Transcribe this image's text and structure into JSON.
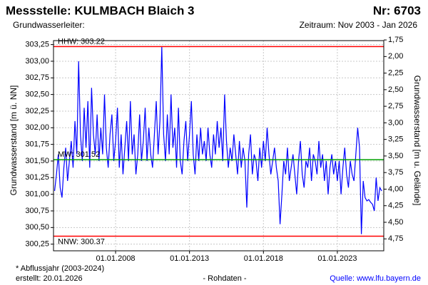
{
  "chart_data": {
    "type": "line",
    "title": "Messstelle: KULMBACH Blaich 3",
    "number": "Nr: 6703",
    "aquifer": "Grundwasserleiter:",
    "period": "Zeitraum: Nov 2003 - Jan 2026",
    "ylabel": "Grundwasserstand [m ü. NN]",
    "y2label": "Grundwasserstand [m u. Gelände]",
    "footnote": "* Abflussjahr (2003-2024)",
    "created": "erstellt:  20.01.2026",
    "rawdata": "- Rohdaten -",
    "source": "Quelle: www.lfu.bayern.de",
    "grid": true,
    "y2_inverted": true,
    "xlim": [
      2003.8,
      2026.14
    ],
    "xticks": [
      {
        "value": 2008,
        "label": "01.01.2008"
      },
      {
        "value": 2013,
        "label": "01.01.2013"
      },
      {
        "value": 2018,
        "label": "01.01.2018"
      },
      {
        "value": 2023,
        "label": "01.01.2023"
      }
    ],
    "ylim": [
      300.15,
      303.31
    ],
    "yticks": [
      {
        "value": 300.25,
        "label": "300,25"
      },
      {
        "value": 300.5,
        "label": "300,50"
      },
      {
        "value": 300.75,
        "label": "300,75"
      },
      {
        "value": 301,
        "label": "301,00"
      },
      {
        "value": 301.25,
        "label": "301,25"
      },
      {
        "value": 301.5,
        "label": "301,50"
      },
      {
        "value": 301.75,
        "label": "301,75"
      },
      {
        "value": 302,
        "label": "302,00"
      },
      {
        "value": 302.25,
        "label": "302,25"
      },
      {
        "value": 302.5,
        "label": "302,50"
      },
      {
        "value": 302.75,
        "label": "302,75"
      },
      {
        "value": 303,
        "label": "303,00"
      },
      {
        "value": 303.25,
        "label": "303,25"
      }
    ],
    "y2lim": [
      1.76,
      4.93
    ],
    "y2ticks": [
      {
        "value": 1.75,
        "label": "1,75"
      },
      {
        "value": 2,
        "label": "2,00"
      },
      {
        "value": 2.25,
        "label": "2,25"
      },
      {
        "value": 2.5,
        "label": "2,50"
      },
      {
        "value": 2.75,
        "label": "2,75"
      },
      {
        "value": 3,
        "label": "3,00"
      },
      {
        "value": 3.25,
        "label": "3,25"
      },
      {
        "value": 3.5,
        "label": "3,50"
      },
      {
        "value": 3.75,
        "label": "3,75"
      },
      {
        "value": 4,
        "label": "4,00"
      },
      {
        "value": 4.25,
        "label": "4,25"
      },
      {
        "value": 4.5,
        "label": "4,50"
      },
      {
        "value": 4.75,
        "label": "4,75"
      }
    ],
    "reference_lines": [
      {
        "label": "HHW: 303.22",
        "value": 303.22,
        "color": "#ff0000"
      },
      {
        "label": "MW: 301.52",
        "value": 301.52,
        "color": "#00a000"
      },
      {
        "label": "NNW: 300.37",
        "value": 300.37,
        "color": "#ff0000"
      }
    ],
    "x": [
      2003.875,
      2004,
      2004.125,
      2004.25,
      2004.375,
      2004.5,
      2004.625,
      2004.75,
      2004.875,
      2005,
      2005.125,
      2005.25,
      2005.375,
      2005.5,
      2005.625,
      2005.75,
      2005.875,
      2006,
      2006.125,
      2006.25,
      2006.375,
      2006.5,
      2006.625,
      2006.75,
      2006.875,
      2007,
      2007.125,
      2007.25,
      2007.375,
      2007.5,
      2007.625,
      2007.75,
      2007.875,
      2008,
      2008.125,
      2008.25,
      2008.375,
      2008.5,
      2008.625,
      2008.75,
      2008.875,
      2009,
      2009.125,
      2009.25,
      2009.375,
      2009.5,
      2009.625,
      2009.75,
      2009.875,
      2010,
      2010.125,
      2010.25,
      2010.375,
      2010.5,
      2010.625,
      2010.75,
      2010.875,
      2011,
      2011.125,
      2011.25,
      2011.375,
      2011.5,
      2011.625,
      2011.75,
      2011.875,
      2012,
      2012.125,
      2012.25,
      2012.375,
      2012.5,
      2012.625,
      2012.75,
      2012.875,
      2013,
      2013.125,
      2013.25,
      2013.375,
      2013.5,
      2013.625,
      2013.75,
      2013.875,
      2014,
      2014.125,
      2014.25,
      2014.375,
      2014.5,
      2014.625,
      2014.75,
      2014.875,
      2015,
      2015.125,
      2015.25,
      2015.375,
      2015.5,
      2015.625,
      2015.75,
      2015.875,
      2016,
      2016.125,
      2016.25,
      2016.375,
      2016.5,
      2016.625,
      2016.75,
      2016.875,
      2017,
      2017.125,
      2017.25,
      2017.375,
      2017.5,
      2017.625,
      2017.75,
      2017.875,
      2018,
      2018.125,
      2018.25,
      2018.375,
      2018.5,
      2018.625,
      2018.75,
      2018.875,
      2019,
      2019.125,
      2019.25,
      2019.375,
      2019.5,
      2019.625,
      2019.75,
      2019.875,
      2020,
      2020.125,
      2020.25,
      2020.375,
      2020.5,
      2020.625,
      2020.75,
      2020.875,
      2021,
      2021.125,
      2021.25,
      2021.375,
      2021.5,
      2021.625,
      2021.75,
      2021.875,
      2022,
      2022.125,
      2022.25,
      2022.375,
      2022.5,
      2022.625,
      2022.75,
      2022.875,
      2023,
      2023.125,
      2023.25,
      2023.375,
      2023.5,
      2023.625,
      2023.75,
      2023.875,
      2024,
      2024.125,
      2024.25,
      2024.375,
      2024.5,
      2024.625,
      2024.75,
      2024.875,
      2025,
      2025.125,
      2025.25,
      2025.375,
      2025.5,
      2025.625,
      2025.75,
      2025.875,
      2026
    ],
    "series": [
      {
        "color": "#0000ff",
        "values": [
          301.05,
          301.3,
          301.6,
          301.1,
          300.95,
          301.4,
          301.7,
          301.2,
          301.5,
          301.8,
          301.4,
          302.1,
          301.6,
          303.0,
          301.9,
          301.5,
          302.3,
          301.7,
          302.4,
          301.4,
          302.6,
          301.9,
          301.6,
          302.2,
          301.5,
          302.0,
          301.6,
          302.5,
          301.7,
          301.4,
          301.9,
          302.2,
          301.5,
          301.8,
          302.3,
          301.4,
          301.9,
          301.3,
          301.7,
          302.1,
          301.5,
          302.4,
          301.6,
          301.9,
          301.3,
          301.6,
          302.2,
          301.5,
          301.8,
          302.3,
          301.5,
          302.0,
          301.6,
          301.4,
          301.9,
          302.4,
          301.6,
          302.1,
          303.22,
          301.9,
          301.5,
          302.2,
          301.6,
          302.5,
          301.7,
          302.0,
          301.4,
          302.3,
          301.5,
          301.3,
          301.8,
          302.1,
          301.5,
          301.9,
          302.4,
          301.6,
          301.3,
          301.9,
          301.5,
          302.0,
          301.6,
          301.8,
          301.5,
          302.0,
          301.6,
          301.4,
          301.9,
          301.6,
          302.1,
          301.7,
          302.0,
          301.5,
          302.5,
          301.8,
          301.4,
          301.7,
          301.5,
          301.9,
          301.6,
          301.3,
          301.8,
          301.4,
          301.7,
          301.5,
          300.8,
          301.6,
          301.9,
          301.3,
          301.6,
          301.5,
          301.2,
          301.7,
          301.4,
          301.8,
          301.5,
          302.0,
          301.6,
          301.3,
          301.5,
          301.7,
          301.4,
          301.2,
          300.55,
          301.0,
          301.5,
          301.3,
          301.7,
          301.2,
          301.4,
          301.6,
          301.3,
          301.0,
          301.5,
          301.8,
          301.3,
          301.1,
          301.5,
          301.4,
          301.7,
          301.2,
          301.6,
          301.5,
          301.3,
          301.8,
          301.4,
          301.6,
          301.2,
          301.5,
          301.0,
          301.4,
          301.6,
          301.3,
          301.5,
          301.2,
          301.5,
          301.0,
          301.4,
          301.7,
          301.3,
          301.1,
          301.5,
          301.3,
          301.2,
          301.6,
          302.0,
          301.7,
          300.4,
          301.2,
          300.95,
          300.9,
          300.92,
          300.88,
          300.85,
          300.75,
          301.25,
          300.9,
          301.1,
          301.05
        ]
      }
    ]
  }
}
